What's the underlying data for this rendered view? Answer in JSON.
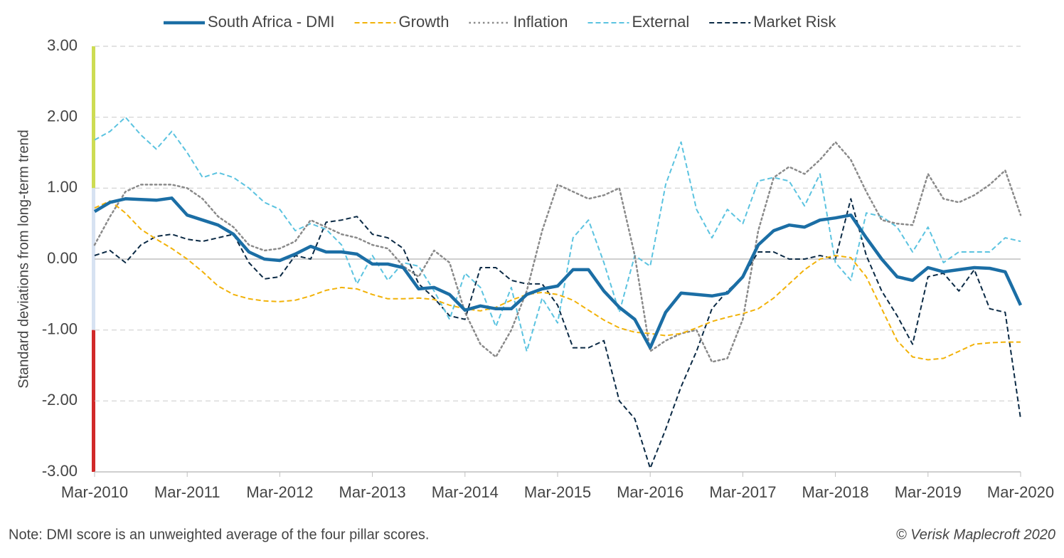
{
  "chart_data": {
    "type": "line",
    "y_label": "Standard deviations from long-term trend",
    "note": "Note: DMI score is an unweighted average of the four pillar scores.",
    "credit": "© Verisk Maplecroft 2020",
    "grid": true,
    "legend_position": "top",
    "ylim": [
      -3,
      3
    ],
    "yticks": [
      {
        "value": -3,
        "label": "-3.00"
      },
      {
        "value": -2,
        "label": "-2.00"
      },
      {
        "value": -1,
        "label": "-1.00"
      },
      {
        "value": 0,
        "label": "0.00"
      },
      {
        "value": 1,
        "label": "1.00"
      },
      {
        "value": 2,
        "label": "2.00"
      },
      {
        "value": 3,
        "label": "3.00"
      }
    ],
    "bands": [
      {
        "from": 1,
        "to": 3,
        "color": "#cddc53"
      },
      {
        "from": -1,
        "to": 1,
        "color": "#d7e2f2"
      },
      {
        "from": -3,
        "to": -1,
        "color": "#d12a2a"
      }
    ],
    "xlim": [
      "2010-03",
      "2020-03"
    ],
    "xticks": [
      {
        "value": "2010-03",
        "label": "Mar-2010"
      },
      {
        "value": "2011-03",
        "label": "Mar-2011"
      },
      {
        "value": "2012-03",
        "label": "Mar-2012"
      },
      {
        "value": "2013-03",
        "label": "Mar-2013"
      },
      {
        "value": "2014-03",
        "label": "Mar-2014"
      },
      {
        "value": "2015-03",
        "label": "Mar-2015"
      },
      {
        "value": "2016-03",
        "label": "Mar-2016"
      },
      {
        "value": "2017-03",
        "label": "Mar-2017"
      },
      {
        "value": "2018-03",
        "label": "Mar-2018"
      },
      {
        "value": "2019-03",
        "label": "Mar-2019"
      },
      {
        "value": "2020-03",
        "label": "Mar-2020"
      }
    ],
    "x": [
      "2010-03",
      "2010-05",
      "2010-07",
      "2010-09",
      "2010-11",
      "2011-01",
      "2011-03",
      "2011-05",
      "2011-07",
      "2011-09",
      "2011-11",
      "2012-01",
      "2012-03",
      "2012-05",
      "2012-07",
      "2012-09",
      "2012-11",
      "2013-01",
      "2013-03",
      "2013-05",
      "2013-07",
      "2013-09",
      "2013-11",
      "2014-01",
      "2014-03",
      "2014-05",
      "2014-07",
      "2014-09",
      "2014-11",
      "2015-01",
      "2015-03",
      "2015-05",
      "2015-07",
      "2015-09",
      "2015-11",
      "2016-01",
      "2016-03",
      "2016-05",
      "2016-07",
      "2016-09",
      "2016-11",
      "2017-01",
      "2017-03",
      "2017-05",
      "2017-07",
      "2017-09",
      "2017-11",
      "2018-01",
      "2018-03",
      "2018-05",
      "2018-07",
      "2018-09",
      "2018-11",
      "2019-01",
      "2019-03",
      "2019-05",
      "2019-07",
      "2019-09",
      "2019-11",
      "2020-01",
      "2020-03"
    ],
    "series": [
      {
        "name": "South Africa - DMI",
        "color": "#1b6ea5",
        "width": 4.5,
        "dash": "solid",
        "values": [
          0.67,
          0.8,
          0.85,
          0.84,
          0.83,
          0.86,
          0.62,
          0.55,
          0.48,
          0.35,
          0.1,
          0.0,
          -0.02,
          0.07,
          0.18,
          0.1,
          0.1,
          0.07,
          -0.07,
          -0.07,
          -0.12,
          -0.42,
          -0.4,
          -0.5,
          -0.72,
          -0.66,
          -0.7,
          -0.7,
          -0.5,
          -0.42,
          -0.38,
          -0.15,
          -0.15,
          -0.45,
          -0.68,
          -0.85,
          -1.25,
          -0.75,
          -0.48,
          -0.5,
          -0.52,
          -0.48,
          -0.25,
          0.2,
          0.4,
          0.48,
          0.45,
          0.55,
          0.58,
          0.62,
          0.3,
          0.0,
          -0.25,
          -0.3,
          -0.12,
          -0.18,
          -0.15,
          -0.12,
          -0.13,
          -0.18,
          -0.65
        ]
      },
      {
        "name": "Growth",
        "color": "#f2b208",
        "width": 2,
        "dash": "dashed",
        "values": [
          0.72,
          0.82,
          0.65,
          0.42,
          0.28,
          0.15,
          0.0,
          -0.18,
          -0.38,
          -0.5,
          -0.56,
          -0.59,
          -0.6,
          -0.58,
          -0.52,
          -0.44,
          -0.4,
          -0.42,
          -0.5,
          -0.56,
          -0.56,
          -0.55,
          -0.57,
          -0.65,
          -0.7,
          -0.73,
          -0.68,
          -0.58,
          -0.5,
          -0.47,
          -0.5,
          -0.58,
          -0.72,
          -0.86,
          -0.97,
          -1.03,
          -1.05,
          -1.08,
          -1.05,
          -0.97,
          -0.88,
          -0.82,
          -0.77,
          -0.7,
          -0.55,
          -0.35,
          -0.15,
          0.0,
          0.05,
          0.02,
          -0.25,
          -0.7,
          -1.15,
          -1.38,
          -1.42,
          -1.4,
          -1.3,
          -1.2,
          -1.18,
          -1.17,
          -1.17
        ]
      },
      {
        "name": "Inflation",
        "color": "#8a8a8a",
        "width": 2.5,
        "dash": "dotted",
        "values": [
          0.2,
          0.6,
          0.95,
          1.05,
          1.05,
          1.05,
          1.0,
          0.85,
          0.6,
          0.45,
          0.2,
          0.12,
          0.15,
          0.25,
          0.55,
          0.45,
          0.35,
          0.3,
          0.2,
          0.15,
          -0.1,
          -0.25,
          0.12,
          -0.05,
          -0.75,
          -1.2,
          -1.38,
          -1.0,
          -0.45,
          0.4,
          1.05,
          0.95,
          0.85,
          0.9,
          1.0,
          0.05,
          -1.3,
          -1.15,
          -1.05,
          -1.0,
          -1.45,
          -1.4,
          -0.85,
          0.4,
          1.15,
          1.3,
          1.2,
          1.4,
          1.65,
          1.4,
          0.95,
          0.55,
          0.5,
          0.48,
          1.2,
          0.85,
          0.8,
          0.9,
          1.05,
          1.25,
          0.62
        ]
      },
      {
        "name": "External",
        "color": "#5bc3e0",
        "width": 2,
        "dash": "dashed",
        "values": [
          1.68,
          1.8,
          2.0,
          1.75,
          1.55,
          1.8,
          1.5,
          1.15,
          1.22,
          1.15,
          1.0,
          0.8,
          0.7,
          0.4,
          0.5,
          0.42,
          0.2,
          -0.35,
          0.05,
          -0.3,
          -0.05,
          -0.1,
          -0.45,
          -0.85,
          -0.2,
          -0.4,
          -0.95,
          -0.4,
          -1.3,
          -0.55,
          -0.9,
          0.3,
          0.55,
          -0.05,
          -0.75,
          0.05,
          -0.1,
          1.05,
          1.65,
          0.7,
          0.3,
          0.7,
          0.5,
          1.1,
          1.15,
          1.1,
          0.75,
          1.2,
          -0.05,
          -0.3,
          0.65,
          0.6,
          0.45,
          0.1,
          0.45,
          -0.05,
          0.1,
          0.1,
          0.1,
          0.3,
          0.25
        ]
      },
      {
        "name": "Market Risk",
        "color": "#0b2a45",
        "width": 2,
        "dash": "dashed",
        "values": [
          0.05,
          0.12,
          -0.05,
          0.2,
          0.32,
          0.35,
          0.28,
          0.25,
          0.3,
          0.35,
          -0.05,
          -0.28,
          -0.25,
          0.05,
          0.0,
          0.52,
          0.55,
          0.6,
          0.35,
          0.3,
          0.15,
          -0.35,
          -0.55,
          -0.8,
          -0.85,
          -0.12,
          -0.12,
          -0.3,
          -0.35,
          -0.35,
          -0.65,
          -1.25,
          -1.25,
          -1.15,
          -2.0,
          -2.25,
          -2.95,
          -2.4,
          -1.8,
          -1.3,
          -0.7,
          -0.45,
          -0.25,
          0.1,
          0.1,
          0.0,
          0.0,
          0.05,
          0.0,
          0.85,
          0.05,
          -0.45,
          -0.8,
          -1.2,
          -0.25,
          -0.2,
          -0.45,
          -0.15,
          -0.7,
          -0.75,
          -2.25
        ]
      }
    ]
  }
}
